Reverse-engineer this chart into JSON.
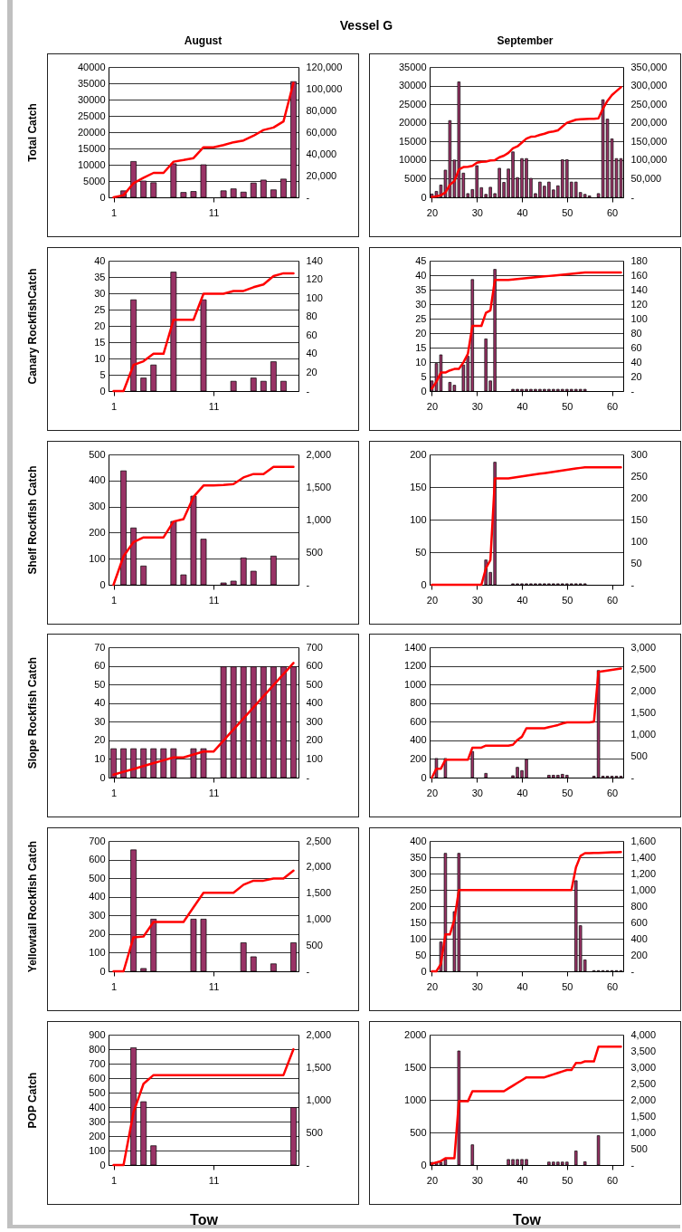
{
  "chart_data": [
    {
      "type": "bar",
      "title": "Vessel G",
      "subtitle": "August",
      "ylabel": "Total Catch",
      "x": [
        1,
        2,
        3,
        4,
        5,
        6,
        7,
        8,
        9,
        10,
        11,
        12,
        13,
        14,
        15,
        16,
        17,
        18,
        19
      ],
      "xlim": [
        0.5,
        19.5
      ],
      "xticks": [
        1,
        11
      ],
      "ylim": [
        0,
        40000
      ],
      "yticks": [
        0,
        5000,
        10000,
        15000,
        20000,
        25000,
        30000,
        35000,
        40000
      ],
      "y2lim": [
        0,
        120000
      ],
      "y2ticks": [
        {
          "value": 0,
          "label": "-"
        },
        {
          "value": 20000,
          "label": "20,000"
        },
        {
          "value": 40000,
          "label": "40,000"
        },
        {
          "value": 60000,
          "label": "60,000"
        },
        {
          "value": 80000,
          "label": "80,000"
        },
        {
          "value": 100000,
          "label": "100,000"
        },
        {
          "value": 120000,
          "label": "120,000"
        }
      ],
      "grid": "y",
      "series": [
        {
          "type": "bar",
          "color": "#993366",
          "values": [
            0,
            2000,
            11000,
            5000,
            4500,
            0,
            10300,
            1500,
            1800,
            10000,
            0,
            2000,
            2600,
            1600,
            4400,
            5300,
            2300,
            5600,
            35500
          ]
        },
        {
          "type": "line",
          "axis": "y2",
          "color": "#ff0000",
          "values": [
            0,
            2000,
            13000,
            18000,
            22500,
            22500,
            32800,
            34300,
            36100,
            46100,
            46100,
            48100,
            50700,
            52300,
            56700,
            62000,
            64300,
            69900,
            105400
          ]
        }
      ]
    },
    {
      "type": "bar",
      "subtitle": "September",
      "x": [
        20,
        21,
        22,
        23,
        24,
        25,
        26,
        27,
        28,
        29,
        30,
        31,
        32,
        33,
        34,
        35,
        36,
        37,
        38,
        39,
        40,
        41,
        42,
        43,
        44,
        45,
        46,
        47,
        48,
        49,
        50,
        51,
        52,
        53,
        54,
        55,
        56,
        57,
        58,
        59,
        60,
        61,
        62
      ],
      "xlim": [
        19.5,
        62.5
      ],
      "xticks": [
        20,
        30,
        40,
        50,
        60
      ],
      "ylim": [
        0,
        35000
      ],
      "yticks": [
        0,
        5000,
        10000,
        15000,
        20000,
        25000,
        30000,
        35000
      ],
      "y2lim": [
        0,
        350000
      ],
      "y2ticks": [
        {
          "value": 0,
          "label": "-"
        },
        {
          "value": 50000,
          "label": "50,000"
        },
        {
          "value": 100000,
          "label": "100,000"
        },
        {
          "value": 150000,
          "label": "150,000"
        },
        {
          "value": 200000,
          "label": "200,000"
        },
        {
          "value": 250000,
          "label": "250,000"
        },
        {
          "value": 300000,
          "label": "300,000"
        },
        {
          "value": 350000,
          "label": "350,000"
        }
      ],
      "grid": "y",
      "series": [
        {
          "type": "bar",
          "color": "#993366",
          "values": [
            900,
            1600,
            3300,
            7300,
            20600,
            10000,
            31000,
            6500,
            1000,
            2100,
            8500,
            2600,
            800,
            2700,
            1000,
            7800,
            4000,
            7600,
            12200,
            5300,
            10400,
            10400,
            5100,
            1000,
            4100,
            3000,
            4100,
            2000,
            3100,
            10100,
            10100,
            4100,
            4100,
            1300,
            800,
            400,
            0,
            1000,
            26200,
            21000,
            15700,
            10400,
            10400
          ]
        },
        {
          "type": "line",
          "axis": "y2",
          "color": "#ff0000",
          "values": [
            900,
            2500,
            5800,
            13100,
            33700,
            43700,
            74700,
            81200,
            82200,
            84300,
            92800,
            95400,
            96200,
            98900,
            99900,
            107700,
            111700,
            119300,
            131500,
            136800,
            147200,
            157600,
            162700,
            163700,
            167800,
            170800,
            174900,
            176900,
            180000,
            190100,
            200200,
            204300,
            208400,
            209700,
            210500,
            210900,
            210900,
            211900,
            238100,
            259100,
            274800,
            285200,
            295600
          ]
        }
      ]
    },
    {
      "type": "bar",
      "ylabel": "Canary RockfishCatch",
      "x": [
        1,
        2,
        3,
        4,
        5,
        6,
        7,
        8,
        9,
        10,
        11,
        12,
        13,
        14,
        15,
        16,
        17,
        18,
        19
      ],
      "xlim": [
        0.5,
        19.5
      ],
      "xticks": [
        1,
        11
      ],
      "ylim": [
        0,
        40
      ],
      "yticks": [
        0,
        5,
        10,
        15,
        20,
        25,
        30,
        35,
        40
      ],
      "y2lim": [
        0,
        140
      ],
      "y2ticks": [
        {
          "value": 0,
          "label": "-"
        },
        20,
        40,
        60,
        80,
        100,
        120,
        140
      ],
      "grid": "y",
      "series": [
        {
          "type": "bar",
          "color": "#993366",
          "values": [
            0,
            0,
            28,
            4,
            8,
            0,
            36.5,
            0,
            0,
            28,
            0,
            0,
            3,
            0,
            4,
            3,
            9,
            3,
            0
          ]
        },
        {
          "type": "line",
          "axis": "y2",
          "color": "#ff0000",
          "values": [
            0,
            0,
            28,
            32,
            40,
            40,
            76.5,
            76.5,
            76.5,
            104.5,
            104.5,
            104.5,
            107.5,
            107.5,
            111.5,
            114.5,
            123.5,
            126.5,
            126.5
          ]
        }
      ]
    },
    {
      "type": "bar",
      "x": [
        20,
        21,
        22,
        23,
        24,
        25,
        26,
        27,
        28,
        29,
        30,
        31,
        32,
        33,
        34,
        35,
        36,
        37,
        38,
        39,
        40,
        41,
        42,
        43,
        44,
        45,
        46,
        47,
        48,
        49,
        50,
        51,
        52,
        53,
        54,
        55,
        56,
        57,
        58,
        59,
        60,
        61,
        62
      ],
      "xlim": [
        19.5,
        62.5
      ],
      "xticks": [
        20,
        30,
        40,
        50,
        60
      ],
      "ylim": [
        0,
        45
      ],
      "yticks": [
        0,
        5,
        10,
        15,
        20,
        25,
        30,
        35,
        40,
        45
      ],
      "y2lim": [
        0,
        180
      ],
      "y2ticks": [
        {
          "value": 0,
          "label": "-"
        },
        20,
        40,
        60,
        80,
        100,
        120,
        140,
        160,
        180
      ],
      "grid": "y",
      "series": [
        {
          "type": "bar",
          "color": "#993366",
          "values": [
            3.5,
            9.5,
            12.5,
            0,
            3,
            2,
            0,
            9,
            12,
            38.5,
            0,
            0,
            18,
            3.5,
            42,
            0,
            0,
            0,
            0.6,
            0.6,
            0.6,
            0.6,
            0.6,
            0.6,
            0.6,
            0.6,
            0.6,
            0.6,
            0.6,
            0.6,
            0.6,
            0.6,
            0.6,
            0.6,
            0.6,
            0,
            0,
            0,
            0,
            0,
            0,
            0,
            0
          ]
        },
        {
          "type": "line",
          "axis": "y2",
          "color": "#ff0000",
          "values": [
            3.5,
            13,
            25.5,
            25.5,
            28.5,
            30.5,
            30.5,
            39.5,
            51.5,
            90,
            90,
            90,
            108,
            111.5,
            153.5,
            153.5,
            153.5,
            153.5,
            154.1,
            154.7,
            155.3,
            155.9,
            156.5,
            157.1,
            157.7,
            158.3,
            158.9,
            159.5,
            160.1,
            160.7,
            161.3,
            161.9,
            162.5,
            163.1,
            163.7,
            163.7,
            163.7,
            163.7,
            163.7,
            163.7,
            163.7,
            163.7,
            163.7
          ]
        }
      ]
    },
    {
      "type": "bar",
      "ylabel": "Shelf Rockfish Catch",
      "x": [
        1,
        2,
        3,
        4,
        5,
        6,
        7,
        8,
        9,
        10,
        11,
        12,
        13,
        14,
        15,
        16,
        17,
        18,
        19
      ],
      "xlim": [
        0.5,
        19.5
      ],
      "xticks": [
        1,
        11
      ],
      "ylim": [
        0,
        500
      ],
      "yticks": [
        0,
        100,
        200,
        300,
        400,
        500
      ],
      "y2lim": [
        0,
        2000
      ],
      "y2ticks": [
        {
          "value": 0,
          "label": "-"
        },
        500,
        {
          "value": 1000,
          "label": "1,000"
        },
        {
          "value": 1500,
          "label": "1,500"
        },
        {
          "value": 2000,
          "label": "2,000"
        }
      ],
      "grid": "y",
      "series": [
        {
          "type": "bar",
          "color": "#993366",
          "values": [
            0,
            437,
            218,
            72,
            0,
            0,
            243,
            38,
            340,
            175,
            0,
            7,
            14,
            103,
            52,
            0,
            110,
            0,
            0
          ]
        },
        {
          "type": "line",
          "axis": "y2",
          "color": "#ff0000",
          "values": [
            0,
            437,
            655,
            727,
            727,
            727,
            970,
            1008,
            1348,
            1523,
            1523,
            1530,
            1544,
            1647,
            1699,
            1699,
            1809,
            1809,
            1809
          ]
        }
      ]
    },
    {
      "type": "bar",
      "x": [
        20,
        21,
        22,
        23,
        24,
        25,
        26,
        27,
        28,
        29,
        30,
        31,
        32,
        33,
        34,
        35,
        36,
        37,
        38,
        39,
        40,
        41,
        42,
        43,
        44,
        45,
        46,
        47,
        48,
        49,
        50,
        51,
        52,
        53,
        54,
        55,
        56,
        57,
        58,
        59,
        60,
        61,
        62
      ],
      "xlim": [
        19.5,
        62.5
      ],
      "xticks": [
        20,
        30,
        40,
        50,
        60
      ],
      "ylim": [
        0,
        200
      ],
      "yticks": [
        0,
        50,
        100,
        150,
        200
      ],
      "y2lim": [
        0,
        300
      ],
      "y2ticks": [
        {
          "value": 0,
          "label": "-"
        },
        50,
        100,
        150,
        200,
        250,
        300
      ],
      "grid": "y",
      "series": [
        {
          "type": "bar",
          "color": "#993366",
          "values": [
            0,
            0,
            0,
            0,
            0,
            0,
            0,
            0,
            0,
            0,
            0,
            0,
            38,
            19,
            188,
            0,
            0,
            0,
            1.5,
            1.5,
            1.5,
            1.5,
            1.5,
            1.5,
            1.5,
            1.5,
            1.5,
            1.5,
            1.5,
            1.5,
            1.5,
            1.5,
            1.5,
            1.5,
            1.5,
            0,
            0,
            0,
            0,
            0,
            0,
            0,
            0
          ]
        },
        {
          "type": "line",
          "axis": "y2",
          "color": "#ff0000",
          "values": [
            0,
            0,
            0,
            0,
            0,
            0,
            0,
            0,
            0,
            0,
            0,
            0,
            38,
            57,
            245,
            245,
            245,
            245,
            246.5,
            248,
            249.5,
            251,
            252.5,
            254,
            255.5,
            257,
            258.5,
            260,
            261.5,
            263,
            264.5,
            266,
            267.5,
            269,
            270.5,
            270.5,
            270.5,
            270.5,
            270.5,
            270.5,
            270.5,
            270.5,
            270.5
          ]
        }
      ]
    },
    {
      "type": "bar",
      "ylabel": "Slope Rockfish Catch",
      "x": [
        1,
        2,
        3,
        4,
        5,
        6,
        7,
        8,
        9,
        10,
        11,
        12,
        13,
        14,
        15,
        16,
        17,
        18,
        19
      ],
      "xlim": [
        0.5,
        19.5
      ],
      "xticks": [
        1,
        11
      ],
      "ylim": [
        0,
        70
      ],
      "yticks": [
        0,
        10,
        20,
        30,
        40,
        50,
        60,
        70
      ],
      "y2lim": [
        0,
        700
      ],
      "y2ticks": [
        {
          "value": 0,
          "label": "-"
        },
        100,
        200,
        300,
        400,
        500,
        600,
        700
      ],
      "grid": "y",
      "series": [
        {
          "type": "bar",
          "color": "#993366",
          "values": [
            15.5,
            15.5,
            15.5,
            15.5,
            15.5,
            15.5,
            15.5,
            0,
            15.5,
            15.5,
            0,
            59.5,
            59.5,
            59.5,
            59.5,
            59.5,
            59.5,
            59.5,
            59.5
          ]
        },
        {
          "type": "line",
          "axis": "y2",
          "color": "#ff0000",
          "values": [
            15.5,
            31,
            46.5,
            62,
            77.5,
            93,
            108.5,
            108.5,
            124,
            139.5,
            139.5,
            199,
            258.5,
            318,
            377.5,
            437,
            496.5,
            556,
            615.5
          ]
        }
      ]
    },
    {
      "type": "bar",
      "x": [
        20,
        21,
        22,
        23,
        24,
        25,
        26,
        27,
        28,
        29,
        30,
        31,
        32,
        33,
        34,
        35,
        36,
        37,
        38,
        39,
        40,
        41,
        42,
        43,
        44,
        45,
        46,
        47,
        48,
        49,
        50,
        51,
        52,
        53,
        54,
        55,
        56,
        57,
        58,
        59,
        60,
        61,
        62
      ],
      "xlim": [
        19.5,
        62.5
      ],
      "xticks": [
        20,
        30,
        40,
        50,
        60
      ],
      "ylim": [
        0,
        1400
      ],
      "yticks": [
        0,
        200,
        400,
        600,
        800,
        1000,
        1200,
        1400
      ],
      "y2lim": [
        0,
        3000
      ],
      "y2ticks": [
        {
          "value": 0,
          "label": "-"
        },
        500,
        {
          "value": 1000,
          "label": "1,000"
        },
        {
          "value": 1500,
          "label": "1,500"
        },
        {
          "value": 2000,
          "label": "2,000"
        },
        {
          "value": 2500,
          "label": "2,500"
        },
        {
          "value": 3000,
          "label": "3,000"
        }
      ],
      "grid": "y",
      "series": [
        {
          "type": "bar",
          "color": "#993366",
          "values": [
            0,
            205,
            0,
            205,
            0,
            0,
            0,
            0,
            0,
            280,
            0,
            0,
            45,
            0,
            0,
            0,
            0,
            0,
            20,
            110,
            75,
            195,
            0,
            0,
            0,
            0,
            25,
            25,
            25,
            35,
            25,
            0,
            0,
            0,
            0,
            0,
            15,
            1150,
            15,
            15,
            15,
            15,
            15
          ]
        },
        {
          "type": "line",
          "axis": "y2",
          "color": "#ff0000",
          "values": [
            0,
            205,
            205,
            410,
            410,
            410,
            410,
            410,
            410,
            690,
            690,
            690,
            735,
            735,
            735,
            735,
            735,
            735,
            755,
            865,
            940,
            1135,
            1135,
            1135,
            1135,
            1135,
            1160,
            1185,
            1210,
            1245,
            1270,
            1270,
            1270,
            1270,
            1270,
            1270,
            1285,
            2435,
            2450,
            2465,
            2480,
            2495,
            2510
          ]
        }
      ]
    },
    {
      "type": "bar",
      "ylabel": "Yellowtail Rockfish Catch",
      "x": [
        1,
        2,
        3,
        4,
        5,
        6,
        7,
        8,
        9,
        10,
        11,
        12,
        13,
        14,
        15,
        16,
        17,
        18,
        19
      ],
      "xlim": [
        0.5,
        19.5
      ],
      "xticks": [
        1,
        11
      ],
      "ylim": [
        0,
        700
      ],
      "yticks": [
        0,
        100,
        200,
        300,
        400,
        500,
        600,
        700
      ],
      "y2lim": [
        0,
        2500
      ],
      "y2ticks": [
        {
          "value": 0,
          "label": "-"
        },
        500,
        {
          "value": 1000,
          "label": "1,000"
        },
        {
          "value": 1500,
          "label": "1,500"
        },
        {
          "value": 2000,
          "label": "2,000"
        },
        {
          "value": 2500,
          "label": "2,500"
        }
      ],
      "grid": "y",
      "series": [
        {
          "type": "bar",
          "color": "#993366",
          "values": [
            0,
            0,
            652,
            15,
            280,
            0,
            0,
            0,
            280,
            280,
            0,
            0,
            0,
            153,
            78,
            0,
            40,
            0,
            153
          ]
        },
        {
          "type": "line",
          "axis": "y2",
          "color": "#ff0000",
          "values": [
            0,
            0,
            652,
            667,
            947,
            947,
            947,
            947,
            1227,
            1507,
            1507,
            1507,
            1507,
            1660,
            1738,
            1738,
            1778,
            1778,
            1931
          ]
        }
      ]
    },
    {
      "type": "bar",
      "x": [
        20,
        21,
        22,
        23,
        24,
        25,
        26,
        27,
        28,
        29,
        30,
        31,
        32,
        33,
        34,
        35,
        36,
        37,
        38,
        39,
        40,
        41,
        42,
        43,
        44,
        45,
        46,
        47,
        48,
        49,
        50,
        51,
        52,
        53,
        54,
        55,
        56,
        57,
        58,
        59,
        60,
        61,
        62
      ],
      "xlim": [
        19.5,
        62.5
      ],
      "xticks": [
        20,
        30,
        40,
        50,
        60
      ],
      "ylim": [
        0,
        400
      ],
      "yticks": [
        0,
        50,
        100,
        150,
        200,
        250,
        300,
        350,
        400
      ],
      "y2lim": [
        0,
        1600
      ],
      "y2ticks": [
        {
          "value": 0,
          "label": "-"
        },
        200,
        400,
        600,
        800,
        {
          "value": 1000,
          "label": "1,000"
        },
        {
          "value": 1200,
          "label": "1,200"
        },
        {
          "value": 1400,
          "label": "1,400"
        },
        {
          "value": 1600,
          "label": "1,600"
        }
      ],
      "grid": "y",
      "series": [
        {
          "type": "bar",
          "color": "#993366",
          "values": [
            0,
            0,
            90,
            362,
            0,
            183,
            362,
            0,
            0,
            0,
            0,
            0,
            0,
            0,
            0,
            0,
            0,
            0,
            0,
            0,
            0,
            0,
            0,
            0,
            0,
            0,
            0,
            0,
            0,
            0,
            0,
            0,
            278,
            140,
            35,
            0,
            2,
            2,
            2,
            2,
            2,
            2,
            2
          ]
        },
        {
          "type": "line",
          "axis": "y2",
          "color": "#ff0000",
          "values": [
            0,
            0,
            90,
            452,
            452,
            635,
            997,
            997,
            997,
            997,
            997,
            997,
            997,
            997,
            997,
            997,
            997,
            997,
            997,
            997,
            997,
            997,
            997,
            997,
            997,
            997,
            997,
            997,
            997,
            997,
            997,
            997,
            1275,
            1415,
            1450,
            1450,
            1452,
            1454,
            1456,
            1458,
            1460,
            1462,
            1464
          ]
        }
      ]
    },
    {
      "type": "bar",
      "ylabel": "POP Catch",
      "xlabel": "Tow",
      "x": [
        1,
        2,
        3,
        4,
        5,
        6,
        7,
        8,
        9,
        10,
        11,
        12,
        13,
        14,
        15,
        16,
        17,
        18,
        19
      ],
      "xlim": [
        0.5,
        19.5
      ],
      "xticks": [
        1,
        11
      ],
      "ylim": [
        0,
        900
      ],
      "yticks": [
        0,
        100,
        200,
        300,
        400,
        500,
        600,
        700,
        800,
        900
      ],
      "y2lim": [
        0,
        2000
      ],
      "y2ticks": [
        {
          "value": 0,
          "label": "-"
        },
        500,
        {
          "value": 1000,
          "label": "1,000"
        },
        {
          "value": 1500,
          "label": "1,500"
        },
        {
          "value": 2000,
          "label": "2,000"
        }
      ],
      "grid": "y",
      "series": [
        {
          "type": "bar",
          "color": "#993366",
          "values": [
            0,
            0,
            810,
            437,
            133,
            0,
            0,
            0,
            0,
            0,
            0,
            0,
            0,
            0,
            0,
            0,
            0,
            0,
            397
          ]
        },
        {
          "type": "line",
          "axis": "y2",
          "color": "#ff0000",
          "values": [
            0,
            0,
            810,
            1247,
            1380,
            1380,
            1380,
            1380,
            1380,
            1380,
            1380,
            1380,
            1380,
            1380,
            1380,
            1380,
            1380,
            1380,
            1777
          ]
        }
      ]
    },
    {
      "type": "bar",
      "xlabel": "Tow",
      "x": [
        20,
        21,
        22,
        23,
        24,
        25,
        26,
        27,
        28,
        29,
        30,
        31,
        32,
        33,
        34,
        35,
        36,
        37,
        38,
        39,
        40,
        41,
        42,
        43,
        44,
        45,
        46,
        47,
        48,
        49,
        50,
        51,
        52,
        53,
        54,
        55,
        56,
        57,
        58,
        59,
        60,
        61,
        62
      ],
      "xlim": [
        19.5,
        62.5
      ],
      "xticks": [
        20,
        30,
        40,
        50,
        60
      ],
      "ylim": [
        0,
        2000
      ],
      "yticks": [
        0,
        500,
        1000,
        1500,
        2000
      ],
      "y2lim": [
        0,
        4000
      ],
      "y2ticks": [
        {
          "value": 0,
          "label": "-"
        },
        500,
        {
          "value": 1000,
          "label": "1,000"
        },
        {
          "value": 1500,
          "label": "1,500"
        },
        {
          "value": 2000,
          "label": "2,000"
        },
        {
          "value": 2500,
          "label": "2,500"
        },
        {
          "value": 3000,
          "label": "3,000"
        },
        {
          "value": 3500,
          "label": "3,500"
        },
        {
          "value": 4000,
          "label": "4,000"
        }
      ],
      "grid": "y",
      "series": [
        {
          "type": "bar",
          "color": "#993366",
          "values": [
            40,
            40,
            40,
            85,
            0,
            0,
            1750,
            0,
            0,
            310,
            0,
            0,
            0,
            0,
            0,
            0,
            0,
            85,
            85,
            85,
            85,
            85,
            0,
            0,
            0,
            0,
            45,
            45,
            45,
            45,
            45,
            0,
            215,
            0,
            50,
            0,
            0,
            450,
            0,
            0,
            0,
            0,
            0
          ]
        },
        {
          "type": "line",
          "axis": "y2",
          "color": "#ff0000",
          "values": [
            40,
            80,
            120,
            205,
            205,
            205,
            1955,
            1955,
            1955,
            2265,
            2265,
            2265,
            2265,
            2265,
            2265,
            2265,
            2265,
            2350,
            2435,
            2520,
            2605,
            2690,
            2690,
            2690,
            2690,
            2690,
            2735,
            2780,
            2825,
            2870,
            2915,
            2915,
            3130,
            3130,
            3180,
            3180,
            3180,
            3630,
            3630,
            3630,
            3630,
            3630,
            3630
          ]
        }
      ]
    }
  ]
}
